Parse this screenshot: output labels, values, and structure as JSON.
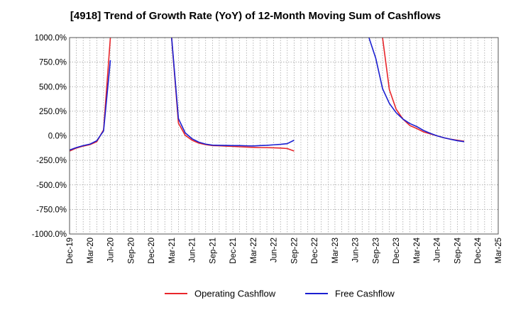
{
  "chart_data": {
    "type": "line",
    "title": "[4918]  Trend of Growth Rate (YoY) of 12-Month Moving Sum of Cashflows",
    "xlabel": "",
    "ylabel": "",
    "ylim": [
      -1000,
      1000
    ],
    "y_ticks": [
      "1000.0%",
      "750.0%",
      "500.0%",
      "250.0%",
      "0.0%",
      "-250.0%",
      "-500.0%",
      "-750.0%",
      "-1000.0%"
    ],
    "x_ticks": [
      "Dec-19",
      "Mar-20",
      "Jun-20",
      "Sep-20",
      "Dec-20",
      "Mar-21",
      "Jun-21",
      "Sep-21",
      "Dec-21",
      "Mar-22",
      "Jun-22",
      "Sep-22",
      "Dec-22",
      "Mar-23",
      "Jun-23",
      "Sep-23",
      "Dec-23",
      "Mar-24",
      "Jun-24",
      "Sep-24",
      "Dec-24",
      "Mar-25"
    ],
    "grid": true,
    "legend_position": "bottom",
    "series": [
      {
        "name": "Operating Cashflow",
        "color": "#e8262b",
        "segments": [
          [
            [
              "Dec-19",
              -155
            ],
            [
              "Jan-20",
              -125
            ],
            [
              "Feb-20",
              -105
            ],
            [
              "Mar-20",
              -90
            ],
            [
              "Apr-20",
              -60
            ],
            [
              "May-20",
              60
            ],
            [
              "Jun-20",
              1000
            ]
          ],
          [
            [
              "Mar-21",
              1000
            ],
            [
              "Apr-21",
              130
            ],
            [
              "May-21",
              5
            ],
            [
              "Jun-21",
              -45
            ],
            [
              "Jul-21",
              -75
            ],
            [
              "Aug-21",
              -90
            ],
            [
              "Sep-21",
              -100
            ],
            [
              "Oct-21",
              -102
            ],
            [
              "Nov-21",
              -105
            ],
            [
              "Dec-21",
              -108
            ],
            [
              "Jan-22",
              -112
            ],
            [
              "Feb-22",
              -115
            ],
            [
              "Mar-22",
              -118
            ],
            [
              "Apr-22",
              -120
            ],
            [
              "May-22",
              -121
            ],
            [
              "Jun-22",
              -122
            ],
            [
              "Jul-22",
              -125
            ],
            [
              "Aug-22",
              -130
            ],
            [
              "Sep-22",
              -155
            ]
          ],
          [
            [
              "Oct-23",
              1000
            ],
            [
              "Nov-23",
              470
            ],
            [
              "Dec-23",
              270
            ],
            [
              "Jan-24",
              170
            ],
            [
              "Feb-24",
              105
            ],
            [
              "Mar-24",
              75
            ],
            [
              "Apr-24",
              40
            ],
            [
              "May-24",
              20
            ],
            [
              "Jun-24",
              0
            ],
            [
              "Jul-24",
              -20
            ],
            [
              "Aug-24",
              -35
            ],
            [
              "Sep-24",
              -45
            ],
            [
              "Oct-24",
              -55
            ]
          ]
        ]
      },
      {
        "name": "Free Cashflow",
        "color": "#1b1fd1",
        "segments": [
          [
            [
              "Dec-19",
              -145
            ],
            [
              "Jan-20",
              -120
            ],
            [
              "Feb-20",
              -100
            ],
            [
              "Mar-20",
              -85
            ],
            [
              "Apr-20",
              -50
            ],
            [
              "May-20",
              50
            ],
            [
              "Jun-20",
              770
            ]
          ],
          [
            [
              "Mar-21",
              1000
            ],
            [
              "Apr-21",
              175
            ],
            [
              "May-21",
              30
            ],
            [
              "Jun-21",
              -30
            ],
            [
              "Jul-21",
              -65
            ],
            [
              "Aug-21",
              -85
            ],
            [
              "Sep-21",
              -95
            ],
            [
              "Oct-21",
              -97
            ],
            [
              "Nov-21",
              -98
            ],
            [
              "Dec-21",
              -100
            ],
            [
              "Jan-22",
              -100
            ],
            [
              "Feb-22",
              -102
            ],
            [
              "Mar-22",
              -103
            ],
            [
              "Apr-22",
              -100
            ],
            [
              "May-22",
              -97
            ],
            [
              "Jun-22",
              -92
            ],
            [
              "Jul-22",
              -87
            ],
            [
              "Aug-22",
              -80
            ],
            [
              "Sep-22",
              -45
            ]
          ],
          [
            [
              "Aug-23",
              1000
            ],
            [
              "Sep-23",
              790
            ],
            [
              "Oct-23",
              480
            ],
            [
              "Nov-23",
              330
            ],
            [
              "Dec-23",
              235
            ],
            [
              "Jan-24",
              170
            ],
            [
              "Feb-24",
              125
            ],
            [
              "Mar-24",
              95
            ],
            [
              "Apr-24",
              55
            ],
            [
              "May-24",
              25
            ],
            [
              "Jun-24",
              0
            ],
            [
              "Jul-24",
              -20
            ],
            [
              "Aug-24",
              -35
            ],
            [
              "Sep-24",
              -50
            ],
            [
              "Oct-24",
              -60
            ]
          ]
        ]
      }
    ]
  }
}
